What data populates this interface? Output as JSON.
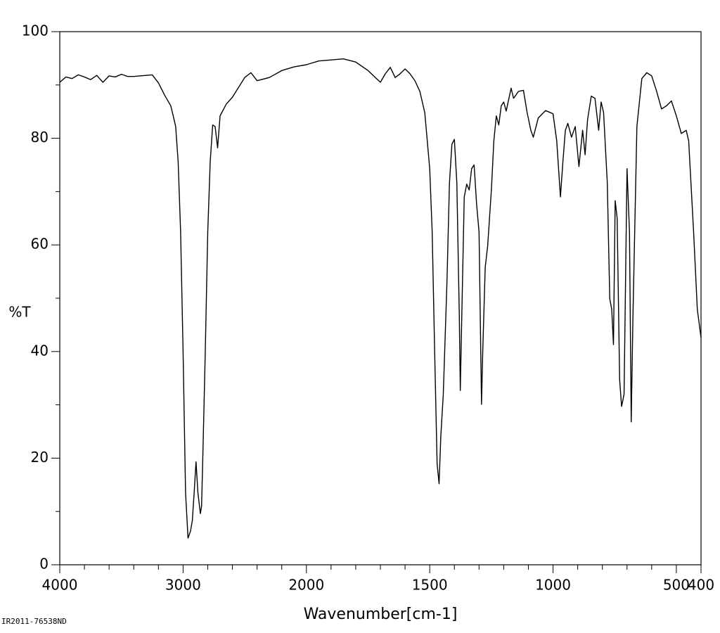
{
  "chart_data": {
    "type": "line",
    "ylabel": "%T",
    "xlabel": "Wavenumber[cm-1]",
    "footnote": "IR2011-76538ND",
    "xlim": [
      4000,
      400
    ],
    "ylim": [
      0,
      100
    ],
    "xticks": [
      4000,
      3000,
      2000,
      1500,
      1000,
      500,
      400
    ],
    "yticks": [
      0,
      20,
      40,
      60,
      80,
      100
    ],
    "xminorticks": [
      3800,
      3600,
      3400,
      3200,
      2800,
      2600,
      2400,
      2200,
      1900,
      1800,
      1700,
      1600,
      1400,
      1300,
      1200,
      1100,
      900,
      800,
      700,
      600
    ],
    "yminorticks": [
      10,
      30,
      50,
      70,
      90
    ],
    "x_scale_break": 2000,
    "x_scale_factor": 2,
    "grid": false,
    "series": [
      {
        "color": "#000000",
        "x": [
          4000,
          3950,
          3900,
          3850,
          3800,
          3750,
          3700,
          3650,
          3600,
          3550,
          3500,
          3450,
          3400,
          3300,
          3250,
          3200,
          3150,
          3100,
          3080,
          3060,
          3040,
          3020,
          3000,
          2980,
          2960,
          2940,
          2925,
          2910,
          2895,
          2880,
          2860,
          2850,
          2840,
          2820,
          2800,
          2780,
          2760,
          2740,
          2720,
          2700,
          2650,
          2600,
          2500,
          2450,
          2400,
          2300,
          2200,
          2100,
          2000,
          1950,
          1900,
          1850,
          1800,
          1750,
          1700,
          1680,
          1660,
          1640,
          1620,
          1600,
          1580,
          1560,
          1540,
          1520,
          1500,
          1490,
          1480,
          1470,
          1462,
          1455,
          1445,
          1430,
          1420,
          1410,
          1400,
          1390,
          1380,
          1376,
          1370,
          1360,
          1350,
          1340,
          1330,
          1320,
          1310,
          1300,
          1290,
          1285,
          1275,
          1265,
          1250,
          1240,
          1230,
          1220,
          1210,
          1200,
          1190,
          1170,
          1160,
          1140,
          1120,
          1105,
          1090,
          1080,
          1060,
          1030,
          1000,
          985,
          970,
          960,
          950,
          940,
          925,
          910,
          895,
          880,
          870,
          860,
          845,
          830,
          815,
          805,
          795,
          780,
          770,
          762,
          755,
          748,
          740,
          730,
          722,
          712,
          700,
          690,
          683,
          676,
          660,
          640,
          620,
          600,
          580,
          560,
          540,
          520,
          500,
          480,
          460,
          450,
          430,
          415,
          400
        ],
        "values": [
          90.5,
          91.5,
          91.2,
          91.9,
          91.5,
          91.0,
          91.8,
          90.5,
          91.7,
          91.5,
          92.0,
          91.6,
          91.6,
          91.8,
          91.9,
          90.4,
          88.1,
          86.1,
          84.2,
          82.2,
          75.6,
          62.4,
          40,
          13.6,
          5,
          6.3,
          8.3,
          13.6,
          19.3,
          13.6,
          9.6,
          11,
          20.2,
          40,
          62.4,
          75.6,
          82.5,
          82.2,
          78.2,
          84.2,
          86.4,
          87.7,
          91.4,
          92.3,
          90.8,
          91.4,
          92.7,
          93.4,
          93.8,
          94.5,
          94.7,
          94.9,
          94.3,
          92.7,
          90.5,
          92.1,
          93.3,
          91.4,
          92.1,
          93,
          92.1,
          90.8,
          88.8,
          84.8,
          74.3,
          62.4,
          40,
          18.9,
          15.2,
          24.1,
          32,
          53.2,
          71.6,
          78.9,
          79.8,
          71.6,
          46.6,
          32.7,
          46.6,
          69,
          71.4,
          70.3,
          74.3,
          75,
          67.7,
          62.4,
          30.1,
          40,
          55.8,
          59.8,
          70.3,
          79.5,
          84.2,
          82.5,
          86.1,
          86.8,
          85.1,
          89.4,
          87.5,
          88.8,
          89,
          84.8,
          81.5,
          80.2,
          83.8,
          85.2,
          84.6,
          79.5,
          69,
          75.6,
          81.5,
          82.8,
          80.2,
          82.2,
          74.7,
          81.5,
          76.9,
          83.5,
          87.9,
          87.5,
          81.5,
          86.8,
          84.8,
          71.6,
          49.9,
          47.9,
          41.3,
          68.3,
          65,
          34.7,
          29.7,
          32,
          74.3,
          62.4,
          26.8,
          46.6,
          82.2,
          91.2,
          92.3,
          91.7,
          88.8,
          85.5,
          86.1,
          87,
          84.2,
          80.9,
          81.5,
          79.5,
          62.4,
          47.9,
          42.6
        ]
      }
    ]
  }
}
